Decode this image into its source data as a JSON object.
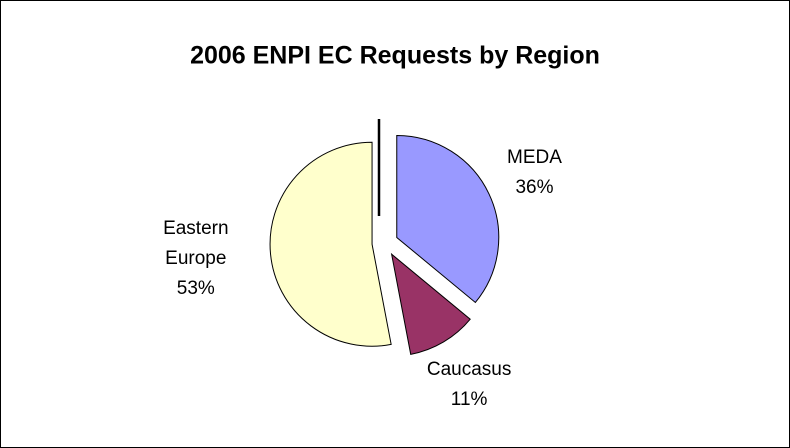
{
  "chart_data": {
    "type": "pie",
    "title": "2006 ENPI EC Requests by Region",
    "categories": [
      "MEDA",
      "Caucasus",
      "Eastern Europe"
    ],
    "values": [
      36,
      11,
      53
    ],
    "value_labels": [
      "36%",
      "11%",
      "53%"
    ],
    "colors": [
      "#9999ff",
      "#993366",
      "#ffffcc"
    ]
  }
}
